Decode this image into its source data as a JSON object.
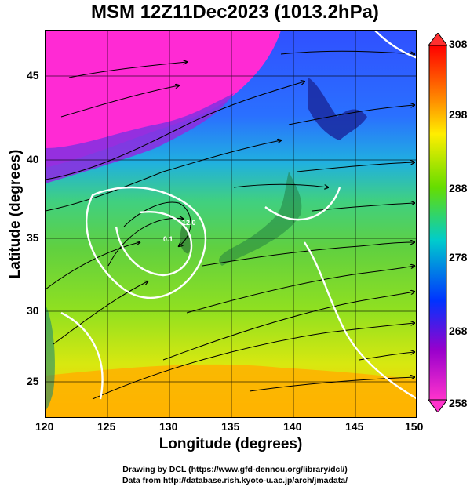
{
  "title": "MSM 12Z11Dec2023 (1013.2hPa)",
  "axes": {
    "xlabel": "Longitude (degrees)",
    "ylabel": "Latitude  (degrees)",
    "xticks": [
      "120",
      "125",
      "130",
      "135",
      "140",
      "145",
      "150"
    ],
    "yticks": [
      "25",
      "30",
      "35",
      "40",
      "45"
    ]
  },
  "colorbar": {
    "labels": [
      "308",
      "298",
      "288",
      "278",
      "268",
      "258"
    ],
    "colors": [
      "#ff0000",
      "#ff8800",
      "#ffee00",
      "#66dd00",
      "#00cccc",
      "#0033ff",
      "#9900cc",
      "#ff33cc"
    ]
  },
  "contour_labels": [
    "0.1",
    "12.0"
  ],
  "credits": {
    "line1": "Drawing by DCL (https://www.gfd-dennou.org/library/dcl/)",
    "line2": "Data from http://database.rish.kyoto-u.ac.jp/arch/jmadata/"
  }
}
